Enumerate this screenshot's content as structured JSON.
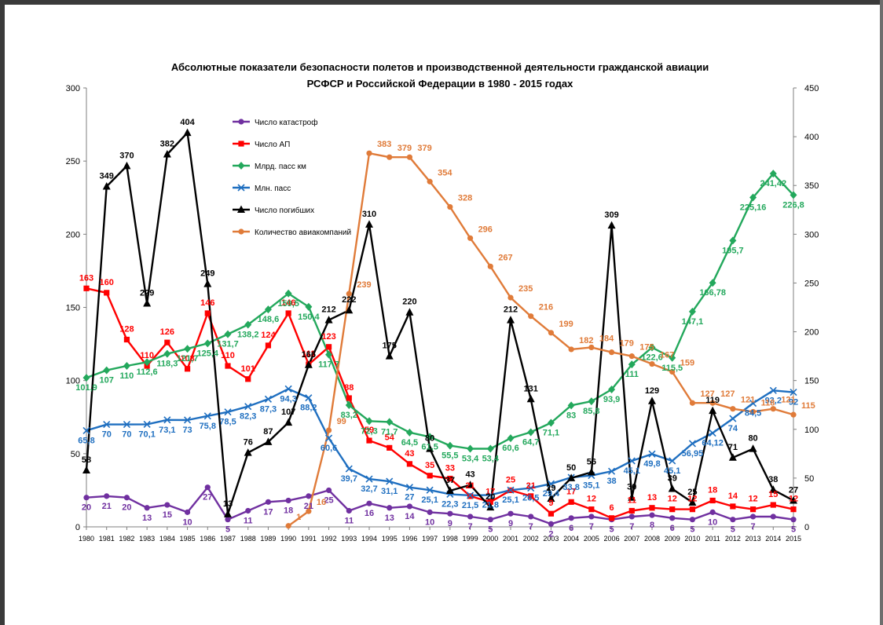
{
  "page": {
    "title_line1": "Абсолютные показатели безопасности полетов и производственной деятельности  гражданской авиации",
    "title_line2": "РСФСР и Российской Федерации в 1980 - 2015 годах"
  },
  "chart_data": {
    "type": "line",
    "title": "Абсолютные показатели безопасности полетов и производственной деятельности  гражданской авиации РСФСР и Российской Федерации в 1980 - 2015 годах",
    "xlabel": "",
    "ylabel": "",
    "ylim": [
      0,
      300
    ],
    "y2lim": [
      0,
      450
    ],
    "yticks": [
      "0",
      "50",
      "100",
      "150",
      "200",
      "250",
      "300"
    ],
    "y2ticks": [
      "0",
      "50",
      "100",
      "150",
      "200",
      "250",
      "300",
      "350",
      "400",
      "450"
    ],
    "grid": false,
    "legend_position": "top-left, inside plot",
    "x": [
      "1980",
      "1981",
      "1982",
      "1983",
      "1984",
      "1985",
      "1986",
      "1987",
      "1988",
      "1989",
      "1990",
      "1991",
      "1992",
      "1993",
      "1994",
      "1995",
      "1996",
      "1997",
      "1998",
      "1999",
      "2000",
      "2001",
      "2002",
      "2003",
      "2004",
      "2005",
      "2006",
      "2007",
      "2008",
      "2009",
      "2010",
      "2011",
      "2012",
      "2013",
      "2014",
      "2015"
    ],
    "series": [
      {
        "name": "Число катастроф",
        "color": "#7030a0",
        "marker": "circle",
        "axis": "left",
        "values": [
          20,
          21,
          20,
          13,
          15,
          10,
          27,
          5,
          11,
          17,
          18,
          21,
          25,
          11,
          16,
          13,
          14,
          10,
          9,
          7,
          5,
          9,
          7,
          2,
          6,
          7,
          5,
          7,
          8,
          6,
          5,
          10,
          5,
          7,
          7,
          5
        ],
        "labels": [
          "20",
          "21",
          "20",
          "13",
          "15",
          "10",
          "27",
          "5",
          "11",
          "17",
          "18",
          "21",
          "25",
          "11",
          "16",
          "13",
          "14",
          "10",
          "9",
          "7",
          "5",
          "9",
          "7",
          "2",
          "6",
          "7",
          "5",
          "7",
          "8",
          "6",
          "5",
          "10",
          "5",
          "7",
          "",
          "5"
        ]
      },
      {
        "name": "Число АП",
        "color": "#ff0000",
        "marker": "square",
        "axis": "left",
        "values": [
          163,
          160,
          128,
          110,
          126,
          108,
          146,
          110,
          101,
          124,
          146,
          111,
          123,
          88,
          59,
          54,
          43,
          35,
          33,
          21,
          17,
          25,
          21,
          9,
          17,
          12,
          6,
          11,
          13,
          12,
          12,
          18,
          14,
          12,
          15,
          12
        ],
        "labels": [
          "163",
          "160",
          "128",
          "110",
          "126",
          "108",
          "146",
          "110",
          "101",
          "124",
          "146",
          "111",
          "123",
          "88",
          "59",
          "54",
          "43",
          "35",
          "33",
          "21",
          "17",
          "25",
          "21",
          "9",
          "17",
          "12",
          "6",
          "11",
          "13",
          "12",
          "12",
          "18",
          "14",
          "12",
          "15",
          "12"
        ]
      },
      {
        "name": "Млрд. пасс км",
        "color": "#23a85c",
        "marker": "diamond",
        "axis": "left",
        "values": [
          101.9,
          107,
          110,
          112.6,
          118.3,
          121.7,
          125.4,
          131.7,
          138.2,
          148.6,
          159.5,
          150.4,
          117.7,
          83.2,
          72.3,
          71.7,
          64.5,
          61.5,
          55.5,
          53.4,
          53.4,
          60.6,
          64.7,
          71.1,
          83,
          85.8,
          93.9,
          111,
          122.6,
          115.5,
          147.1,
          166.78,
          195.7,
          225.16,
          241.42,
          226.8
        ],
        "labels": [
          "101,9",
          "107",
          "110",
          "112,6",
          "118,3",
          "121,7",
          "125,4",
          "131,7",
          "138,2",
          "148,6",
          "159,5",
          "150,4",
          "117,7",
          "83,2",
          "72,3",
          "71,7",
          "64,5",
          "61,5",
          "55,5",
          "53,4",
          "53,4",
          "60,6",
          "64,7",
          "71,1",
          "83",
          "85,8",
          "93,9",
          "111",
          "122,6",
          "115,5",
          "147,1",
          "166,78",
          "195,7",
          "225,16",
          "241,42",
          "226,8"
        ]
      },
      {
        "name": "Млн. пасс",
        "color": "#1f6fc0",
        "marker": "x",
        "axis": "left",
        "values": [
          65.8,
          70,
          70,
          70.1,
          73.1,
          73,
          75.8,
          78.5,
          82.3,
          87.3,
          94.3,
          88.2,
          60.6,
          39.7,
          32.7,
          31.1,
          27,
          25.1,
          22.3,
          21.5,
          21.8,
          25.1,
          26.5,
          29.4,
          33.8,
          35.1,
          38,
          45.1,
          49.8,
          45.1,
          56.95,
          64.12,
          74,
          84.5,
          93.2,
          92
        ],
        "labels": [
          "65,8",
          "70",
          "70",
          "70,1",
          "73,1",
          "73",
          "75,8",
          "78,5",
          "82,3",
          "87,3",
          "94,3",
          "88,2",
          "60,6",
          "39,7",
          "32,7",
          "31,1",
          "27",
          "25,1",
          "22,3",
          "21,5",
          "21,8",
          "25,1",
          "26,5",
          "29,4",
          "33,8",
          "35,1",
          "38",
          "45,1",
          "49,8",
          "45,1",
          "56,95",
          "64,12",
          "74",
          "84,5",
          "93,2",
          "92"
        ]
      },
      {
        "name": "Число погибших",
        "color": "#000000",
        "marker": "triangle",
        "axis": "right",
        "values": [
          58,
          349,
          370,
          229,
          382,
          404,
          249,
          13,
          76,
          87,
          107,
          166,
          212,
          222,
          310,
          175,
          220,
          80,
          37,
          43,
          20,
          212,
          131,
          29,
          50,
          56,
          309,
          30,
          129,
          39,
          25,
          119,
          71,
          80,
          38,
          27
        ],
        "labels": [
          "58",
          "349",
          "370",
          "229",
          "382",
          "404",
          "249",
          "13",
          "76",
          "87",
          "107",
          "166",
          "212",
          "222",
          "310",
          "175",
          "220",
          "80",
          "37",
          "43",
          "20",
          "212",
          "131",
          "29",
          "50",
          "56",
          "309",
          "30",
          "129",
          "39",
          "25",
          "119",
          "71",
          "80",
          "38",
          "27"
        ]
      },
      {
        "name": "Количество авиакомпаний",
        "color": "#e07b39",
        "marker": "circle",
        "axis": "right",
        "values": [
          null,
          null,
          null,
          null,
          null,
          null,
          null,
          null,
          null,
          null,
          1,
          16,
          99,
          239,
          383,
          379,
          379,
          354,
          328,
          296,
          267,
          235,
          216,
          199,
          182,
          184,
          179,
          175,
          167,
          159,
          127,
          127,
          121,
          118,
          121,
          115
        ],
        "labels": [
          "",
          "",
          "",
          "",
          "",
          "",
          "",
          "",
          "",
          "",
          "1",
          "16",
          "99",
          "239",
          "383",
          "379",
          "379",
          "354",
          "328",
          "296",
          "267",
          "235",
          "216",
          "199",
          "182",
          "184",
          "179",
          "175",
          "167",
          "159",
          "127",
          "127",
          "121",
          "118",
          "121",
          "115"
        ]
      }
    ]
  }
}
